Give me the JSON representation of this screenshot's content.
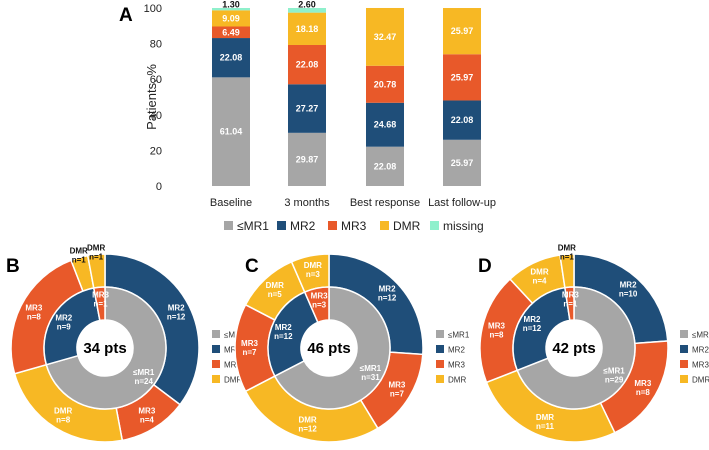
{
  "colors": {
    "le_mr1": "#a6a6a6",
    "mr2": "#1f4e79",
    "mr3": "#e8592a",
    "dmr": "#f7b824",
    "missing": "#8ff0cc"
  },
  "chart_data": [
    {
      "type": "bar",
      "stacked": true,
      "panel": "A",
      "ylabel": "Patients, %",
      "ylim": [
        0,
        100
      ],
      "yticks": [
        "0",
        "20",
        "40",
        "60",
        "80",
        "100"
      ],
      "categories": [
        "Baseline",
        "3 months",
        "Best response",
        "Last follow-up"
      ],
      "series": [
        {
          "name": "≤MR1",
          "values": [
            61.04,
            29.87,
            22.08,
            25.97
          ],
          "labels": [
            "61.04",
            "29.87",
            "22.08",
            "25.97"
          ],
          "color_key": "le_mr1"
        },
        {
          "name": "MR2",
          "values": [
            22.08,
            27.27,
            24.68,
            22.08
          ],
          "labels": [
            "22.08",
            "27.27",
            "24.68",
            "22.08"
          ],
          "color_key": "mr2"
        },
        {
          "name": "MR3",
          "values": [
            6.49,
            22.08,
            20.78,
            25.97
          ],
          "labels": [
            "6.49",
            "22.08",
            "20.78",
            "25.97"
          ],
          "color_key": "mr3"
        },
        {
          "name": "DMR",
          "values": [
            9.09,
            18.18,
            32.47,
            25.97
          ],
          "labels": [
            "9.09",
            "18.18",
            "32.47",
            "25.97"
          ],
          "color_key": "dmr"
        },
        {
          "name": "missing",
          "values": [
            1.3,
            2.6,
            0,
            0
          ],
          "labels": [
            "1.30",
            "2.60",
            "",
            ""
          ],
          "color_key": "missing"
        }
      ],
      "legend": [
        "≤MR1",
        "MR2",
        "MR3",
        "DMR",
        "missing"
      ]
    },
    {
      "type": "pie",
      "panel": "B",
      "center_label": "34 pts",
      "inner": [
        {
          "category": "≤MR1",
          "label": "≤MR1",
          "n": 24,
          "n_label": "n=24",
          "color_key": "le_mr1"
        },
        {
          "category": "MR2",
          "label": "MR2",
          "n": 9,
          "n_label": "n=9",
          "color_key": "mr2"
        },
        {
          "category": "MR3",
          "label": "MR3",
          "n": 1,
          "n_label": "n=1",
          "color_key": "mr3"
        }
      ],
      "outer": [
        {
          "category": "MR2",
          "label": "MR2",
          "n": 12,
          "n_label": "n=12",
          "color_key": "mr2"
        },
        {
          "category": "MR3",
          "label": "MR3",
          "n": 4,
          "n_label": "n=4",
          "color_key": "mr3"
        },
        {
          "category": "DMR",
          "label": "DMR",
          "n": 8,
          "n_label": "n=8",
          "color_key": "dmr"
        },
        {
          "category": "MR3",
          "label": "MR3",
          "n": 8,
          "n_label": "n=8",
          "color_key": "mr3"
        },
        {
          "category": "DMR",
          "label": "DMR",
          "n": 1,
          "n_label": "n=1",
          "color_key": "dmr"
        },
        {
          "category": "DMR",
          "label": "DMR",
          "n": 1,
          "n_label": "n=1",
          "color_key": "dmr"
        }
      ],
      "legend": [
        "≤MR1",
        "MR2",
        "MR3",
        "DMR"
      ]
    },
    {
      "type": "pie",
      "panel": "C",
      "center_label": "46 pts",
      "inner": [
        {
          "category": "≤MR1",
          "label": "≤MR1",
          "n": 31,
          "n_label": "n=31",
          "color_key": "le_mr1"
        },
        {
          "category": "MR2",
          "label": "MR2",
          "n": 12,
          "n_label": "n=12",
          "color_key": "mr2"
        },
        {
          "category": "MR3",
          "label": "MR3",
          "n": 3,
          "n_label": "n=3",
          "color_key": "mr3"
        }
      ],
      "outer": [
        {
          "category": "MR2",
          "label": "MR2",
          "n": 12,
          "n_label": "n=12",
          "color_key": "mr2"
        },
        {
          "category": "MR3",
          "label": "MR3",
          "n": 7,
          "n_label": "n=7",
          "color_key": "mr3"
        },
        {
          "category": "DMR",
          "label": "DMR",
          "n": 12,
          "n_label": "n=12",
          "color_key": "dmr"
        },
        {
          "category": "MR3",
          "label": "MR3",
          "n": 7,
          "n_label": "n=7",
          "color_key": "mr3"
        },
        {
          "category": "DMR",
          "label": "DMR",
          "n": 5,
          "n_label": "n=5",
          "color_key": "dmr"
        },
        {
          "category": "DMR",
          "label": "DMR",
          "n": 3,
          "n_label": "n=3",
          "color_key": "dmr"
        }
      ],
      "legend": [
        "≤MR1",
        "MR2",
        "MR3",
        "DMR"
      ]
    },
    {
      "type": "pie",
      "panel": "D",
      "center_label": "42 pts",
      "inner": [
        {
          "category": "≤MR1",
          "label": "≤MR1",
          "n": 29,
          "n_label": "n=29",
          "color_key": "le_mr1"
        },
        {
          "category": "MR2",
          "label": "MR2",
          "n": 12,
          "n_label": "n=12",
          "color_key": "mr2"
        },
        {
          "category": "MR3",
          "label": "MR3",
          "n": 1,
          "n_label": "n=1",
          "color_key": "mr3"
        }
      ],
      "outer": [
        {
          "category": "MR2",
          "label": "MR2",
          "n": 10,
          "n_label": "n=10",
          "color_key": "mr2"
        },
        {
          "category": "MR3",
          "label": "MR3",
          "n": 8,
          "n_label": "n=8",
          "color_key": "mr3"
        },
        {
          "category": "DMR",
          "label": "DMR",
          "n": 11,
          "n_label": "n=11",
          "color_key": "dmr"
        },
        {
          "category": "MR3",
          "label": "MR3",
          "n": 8,
          "n_label": "n=8",
          "color_key": "mr3"
        },
        {
          "category": "DMR",
          "label": "DMR",
          "n": 4,
          "n_label": "n=4",
          "color_key": "dmr"
        },
        {
          "category": "DMR",
          "label": "DMR",
          "n": 1,
          "n_label": "n=1",
          "color_key": "dmr"
        }
      ],
      "legend": [
        "≤MR1",
        "MR2",
        "MR3",
        "DMR"
      ]
    }
  ]
}
